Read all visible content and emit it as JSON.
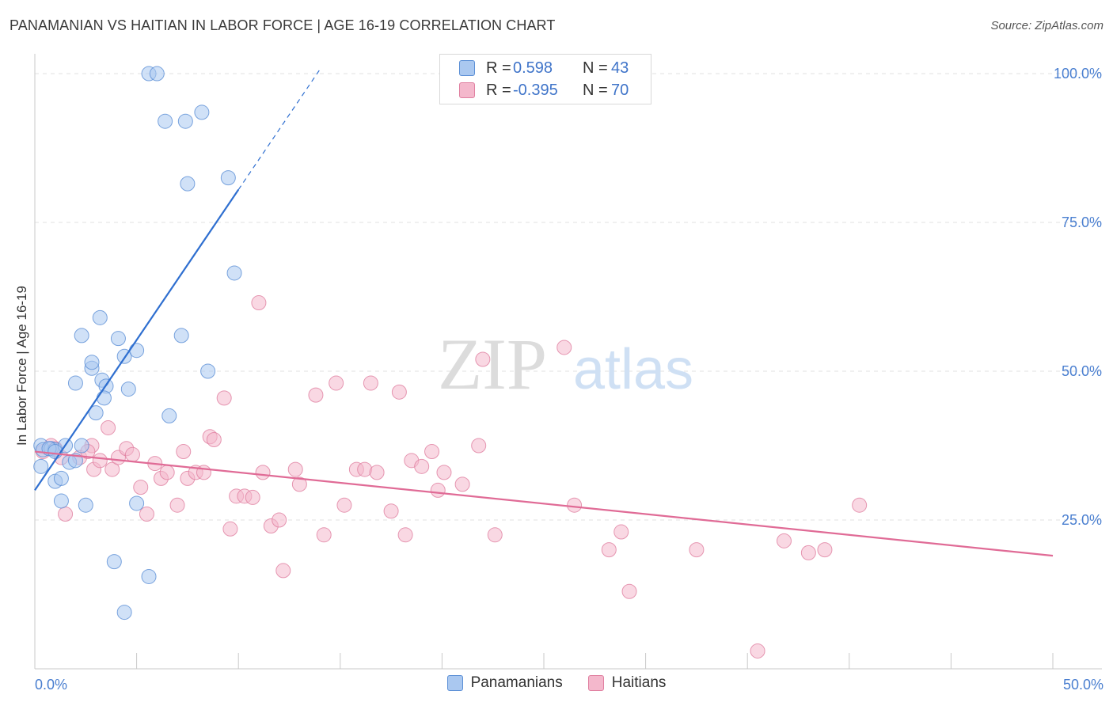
{
  "title": "PANAMANIAN VS HAITIAN IN LABOR FORCE | AGE 16-19 CORRELATION CHART",
  "source": "Source: ZipAtlas.com",
  "watermark": {
    "zip": "ZIP",
    "atlas": "atlas"
  },
  "colors": {
    "blue_fill": "#aac8f0",
    "blue_stroke": "#5b8fd6",
    "blue_line": "#2f6fd0",
    "pink_fill": "#f4b8cc",
    "pink_stroke": "#e07fa0",
    "pink_line": "#e06b96",
    "tick_text": "#4a7fd0",
    "grid": "#e2e2e2"
  },
  "legend": {
    "rows": [
      {
        "r_label": "R =",
        "r_value": "0.598",
        "n_label": "N =",
        "n_value": "43"
      },
      {
        "r_label": "R =",
        "r_value": "-0.395",
        "n_label": "N =",
        "n_value": "70"
      }
    ]
  },
  "bottom_legend": [
    "Panamanians",
    "Haitians"
  ],
  "chart_data": {
    "type": "scatter",
    "xlabel": "",
    "ylabel": "In Labor Force | Age 16-19",
    "xlim": [
      0,
      50
    ],
    "ylim": [
      0,
      102
    ],
    "x_tick_labels": [
      {
        "value": 0,
        "label": "0.0%"
      },
      {
        "value": 50,
        "label": "50.0%"
      }
    ],
    "y_tick_labels": [
      {
        "value": 25,
        "label": "25.0%"
      },
      {
        "value": 50,
        "label": "50.0%"
      },
      {
        "value": 75,
        "label": "75.0%"
      },
      {
        "value": 100,
        "label": "100.0%"
      }
    ],
    "series": [
      {
        "name": "Panamanians",
        "r": 0.598,
        "n": 43,
        "trend": {
          "x0": 0,
          "y0": 30.0,
          "x1": 10,
          "y1": 80.5,
          "dash_to_x": 14,
          "dash_to_y": 100.7
        },
        "points": [
          [
            0.3,
            37.5
          ],
          [
            0.4,
            36.8
          ],
          [
            0.8,
            37.0
          ],
          [
            1.0,
            36.8
          ],
          [
            0.7,
            37.0
          ],
          [
            0.3,
            34.0
          ],
          [
            1.0,
            31.5
          ],
          [
            1.3,
            32.0
          ],
          [
            1.5,
            37.5
          ],
          [
            1.7,
            34.7
          ],
          [
            2.0,
            35.0
          ],
          [
            2.3,
            37.5
          ],
          [
            1.3,
            28.2
          ],
          [
            2.5,
            27.5
          ],
          [
            2.0,
            48.0
          ],
          [
            2.3,
            56.0
          ],
          [
            2.8,
            50.5
          ],
          [
            2.8,
            51.5
          ],
          [
            3.2,
            59.0
          ],
          [
            3.3,
            48.5
          ],
          [
            3.5,
            47.5
          ],
          [
            3.4,
            45.5
          ],
          [
            3.0,
            43.0
          ],
          [
            4.1,
            55.5
          ],
          [
            4.4,
            52.5
          ],
          [
            4.6,
            47.0
          ],
          [
            5.0,
            53.5
          ],
          [
            3.9,
            18.0
          ],
          [
            4.4,
            9.5
          ],
          [
            5.0,
            27.8
          ],
          [
            5.6,
            15.5
          ],
          [
            6.6,
            42.5
          ],
          [
            7.2,
            56.0
          ],
          [
            7.5,
            81.5
          ],
          [
            8.5,
            50.0
          ],
          [
            7.4,
            92.0
          ],
          [
            6.4,
            92.0
          ],
          [
            8.2,
            93.5
          ],
          [
            5.6,
            100.0
          ],
          [
            6.0,
            100.0
          ],
          [
            9.5,
            82.5
          ],
          [
            9.8,
            66.5
          ],
          [
            1.0,
            36.5
          ]
        ]
      },
      {
        "name": "Haitians",
        "r": -0.395,
        "n": 70,
        "trend": {
          "x0": 0,
          "y0": 36.5,
          "x1": 50,
          "y1": 19.0
        },
        "points": [
          [
            0.4,
            36.5
          ],
          [
            1.0,
            37.0
          ],
          [
            0.8,
            37.5
          ],
          [
            1.3,
            35.5
          ],
          [
            1.5,
            26.0
          ],
          [
            2.2,
            35.5
          ],
          [
            2.8,
            37.5
          ],
          [
            2.6,
            36.5
          ],
          [
            2.9,
            33.5
          ],
          [
            3.2,
            35.0
          ],
          [
            3.6,
            40.5
          ],
          [
            3.8,
            33.5
          ],
          [
            4.1,
            35.5
          ],
          [
            4.5,
            37.0
          ],
          [
            4.8,
            36.0
          ],
          [
            5.2,
            30.5
          ],
          [
            5.5,
            26.0
          ],
          [
            5.9,
            34.5
          ],
          [
            6.2,
            32.0
          ],
          [
            6.5,
            33.0
          ],
          [
            7.0,
            27.5
          ],
          [
            7.3,
            36.5
          ],
          [
            7.5,
            32.0
          ],
          [
            7.9,
            33.0
          ],
          [
            8.3,
            33.0
          ],
          [
            8.6,
            39.0
          ],
          [
            8.8,
            38.5
          ],
          [
            9.3,
            45.5
          ],
          [
            9.6,
            23.5
          ],
          [
            9.9,
            29.0
          ],
          [
            10.3,
            29.0
          ],
          [
            10.7,
            28.8
          ],
          [
            11.2,
            33.0
          ],
          [
            11.6,
            24.0
          ],
          [
            12.0,
            25.0
          ],
          [
            12.2,
            16.5
          ],
          [
            12.8,
            33.5
          ],
          [
            13.0,
            31.0
          ],
          [
            13.8,
            46.0
          ],
          [
            14.2,
            22.5
          ],
          [
            14.8,
            48.0
          ],
          [
            15.2,
            27.5
          ],
          [
            15.8,
            33.5
          ],
          [
            16.2,
            33.5
          ],
          [
            16.5,
            48.0
          ],
          [
            16.8,
            33.0
          ],
          [
            17.5,
            26.5
          ],
          [
            17.9,
            46.5
          ],
          [
            18.2,
            22.5
          ],
          [
            18.5,
            35.0
          ],
          [
            19.0,
            34.0
          ],
          [
            19.5,
            36.5
          ],
          [
            19.8,
            30.0
          ],
          [
            20.1,
            33.0
          ],
          [
            21.0,
            31.0
          ],
          [
            21.8,
            37.5
          ],
          [
            22.0,
            52.0
          ],
          [
            22.6,
            22.5
          ],
          [
            26.0,
            54.0
          ],
          [
            26.5,
            27.5
          ],
          [
            28.2,
            20.0
          ],
          [
            28.8,
            23.0
          ],
          [
            29.2,
            13.0
          ],
          [
            32.5,
            20.0
          ],
          [
            35.5,
            3.0
          ],
          [
            36.8,
            21.5
          ],
          [
            38.0,
            19.5
          ],
          [
            38.8,
            20.0
          ],
          [
            40.5,
            27.5
          ],
          [
            11.0,
            61.5
          ]
        ]
      }
    ]
  }
}
